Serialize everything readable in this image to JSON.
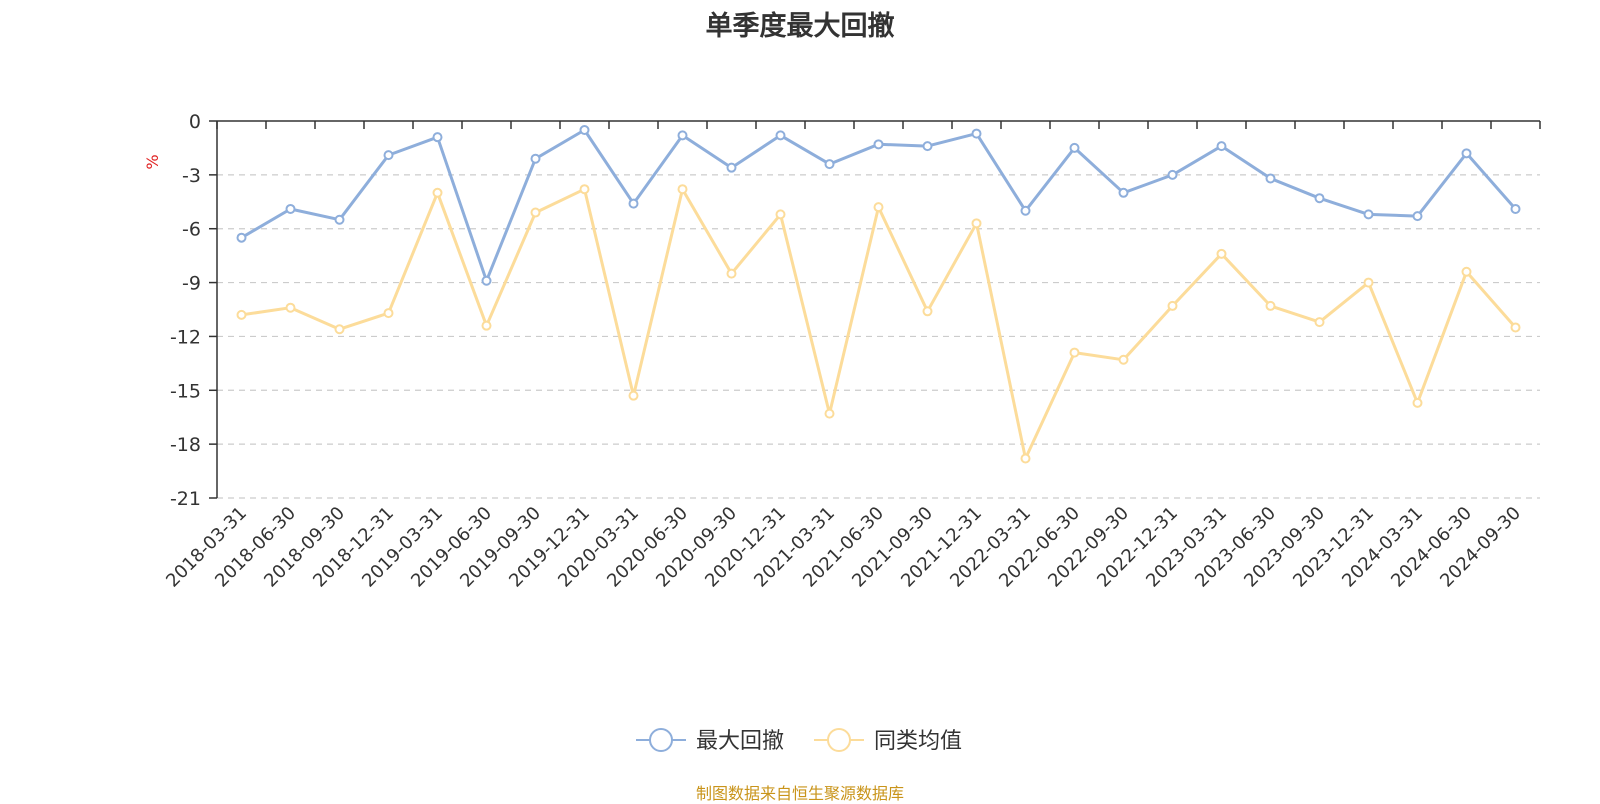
{
  "chart_data": {
    "type": "line",
    "title": "单季度最大回撤",
    "ylabel": "%",
    "ylim": [
      -21,
      0
    ],
    "yticks": [
      0,
      -3,
      -6,
      -9,
      -12,
      -15,
      -18,
      -21
    ],
    "grid": true,
    "legend_position": "bottom-center",
    "categories": [
      "2018-03-31",
      "2018-06-30",
      "2018-09-30",
      "2018-12-31",
      "2019-03-31",
      "2019-06-30",
      "2019-09-30",
      "2019-12-31",
      "2020-03-31",
      "2020-06-30",
      "2020-09-30",
      "2020-12-31",
      "2021-03-31",
      "2021-06-30",
      "2021-09-30",
      "2021-12-31",
      "2022-03-31",
      "2022-06-30",
      "2022-09-30",
      "2022-12-31",
      "2023-03-31",
      "2023-06-30",
      "2023-09-30",
      "2023-12-31",
      "2024-03-31",
      "2024-06-30",
      "2024-09-30"
    ],
    "series": [
      {
        "name": "最大回撤",
        "color": "#8eaedb",
        "values": [
          -6.5,
          -4.9,
          -5.5,
          -1.9,
          -0.9,
          -8.9,
          -2.1,
          -0.5,
          -4.6,
          -0.8,
          -2.6,
          -0.8,
          -2.4,
          -1.3,
          -1.4,
          -0.7,
          -5.0,
          -1.5,
          -4.0,
          -3.0,
          -1.4,
          -3.2,
          -4.3,
          -5.2,
          -5.3,
          -1.8,
          -4.9
        ]
      },
      {
        "name": "同类均值",
        "color": "#fcdc9a",
        "values": [
          -10.8,
          -10.4,
          -11.6,
          -10.7,
          -4.0,
          -11.4,
          -5.1,
          -3.8,
          -15.3,
          -3.8,
          -8.5,
          -5.2,
          -16.3,
          -4.8,
          -10.6,
          -5.7,
          -18.8,
          -12.9,
          -13.3,
          -10.3,
          -7.4,
          -10.3,
          -11.2,
          -9.0,
          -15.7,
          -8.4,
          -11.5
        ]
      }
    ]
  },
  "source_note": "制图数据来自恒生聚源数据库"
}
